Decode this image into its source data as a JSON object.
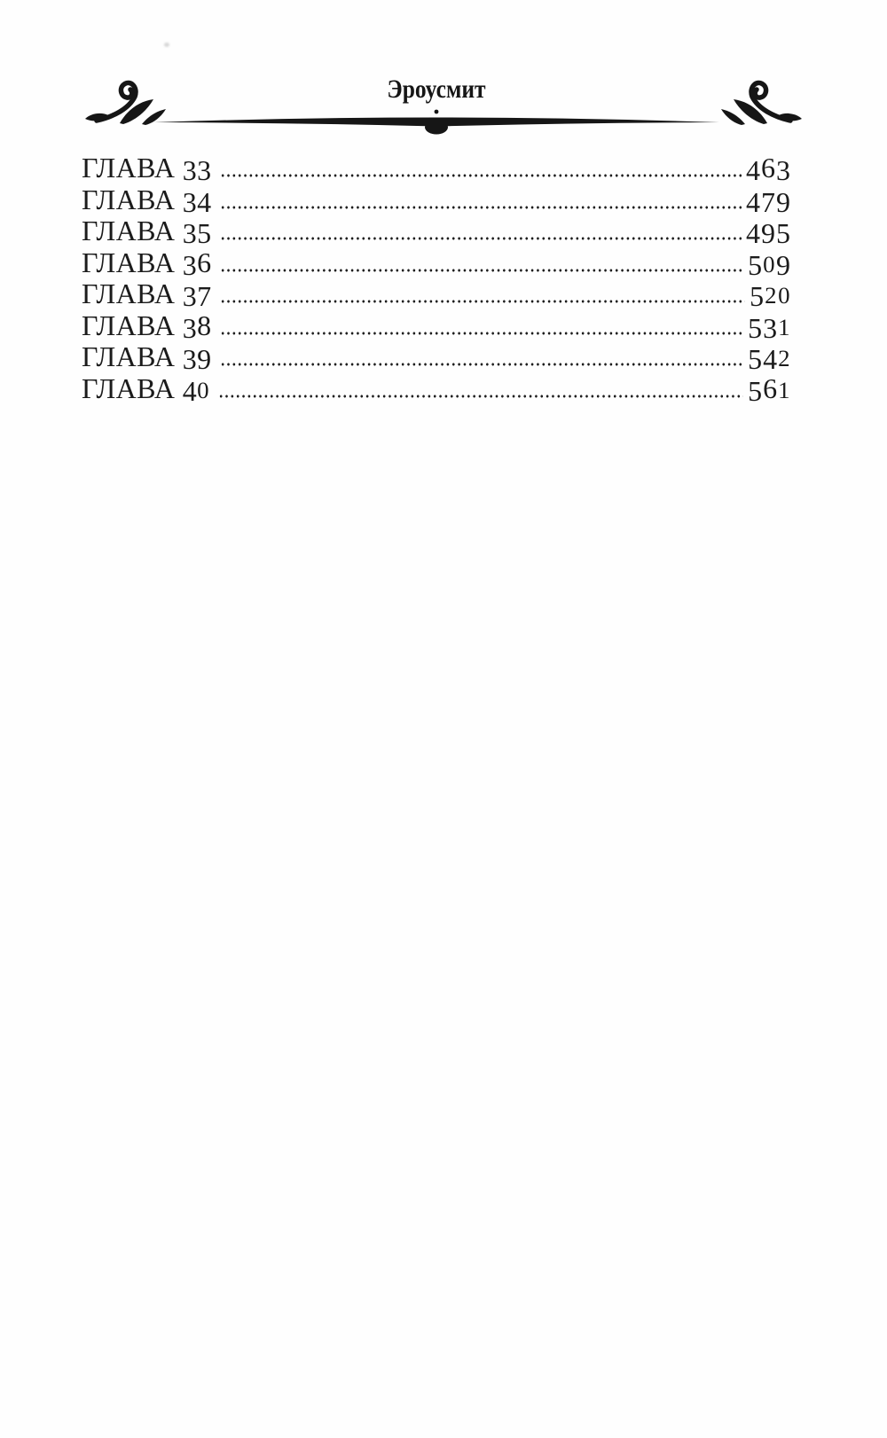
{
  "ink_color": "#1a1a1a",
  "header": {
    "title": "Эроусмит"
  },
  "toc": {
    "entries": [
      {
        "chapter": "ГЛАВА 33",
        "page": "463"
      },
      {
        "chapter": "ГЛАВА 34",
        "page": "479"
      },
      {
        "chapter": "ГЛАВА 35",
        "page": "495"
      },
      {
        "chapter": "ГЛАВА 36",
        "page": "509"
      },
      {
        "chapter": "ГЛАВА 37",
        "page": "520"
      },
      {
        "chapter": "ГЛАВА 38",
        "page": "531"
      },
      {
        "chapter": "ГЛАВА 39",
        "page": "542"
      },
      {
        "chapter": "ГЛАВА 40",
        "page": "561"
      }
    ]
  }
}
